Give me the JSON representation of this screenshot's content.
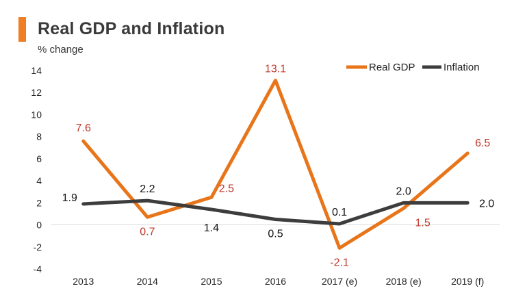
{
  "header": {
    "title": "Real GDP and Inflation",
    "subtitle": "% change",
    "accent_color": "#f07f24"
  },
  "chart_data": {
    "type": "line",
    "title": "Real GDP and Inflation",
    "ylabel": "% change",
    "xlabel": "",
    "categories": [
      "2013",
      "2014",
      "2015",
      "2016",
      "2017 (e)",
      "2018 (e)",
      "2019 (f)"
    ],
    "ylim": [
      -4,
      14
    ],
    "yticks": [
      -4,
      -2,
      0,
      2,
      4,
      6,
      8,
      10,
      12,
      14
    ],
    "legend_position": "top-right",
    "series": [
      {
        "name": "Real GDP",
        "values": [
          7.6,
          0.7,
          2.5,
          13.1,
          -2.1,
          1.5,
          6.5
        ],
        "labels": [
          "7.6",
          "0.7",
          "2.5",
          "13.1",
          "-2.1",
          "1.5",
          "6.5"
        ],
        "color": "#e8751a",
        "label_color": "#c0392b"
      },
      {
        "name": "Inflation",
        "values": [
          1.9,
          2.2,
          1.4,
          0.5,
          0.1,
          2.0,
          2.0
        ],
        "labels": [
          "1.9",
          "2.2",
          "1.4",
          "0.5",
          "0.1",
          "2.0",
          "2.0"
        ],
        "color": "#3d3d3d",
        "label_color": "#111111"
      }
    ]
  }
}
